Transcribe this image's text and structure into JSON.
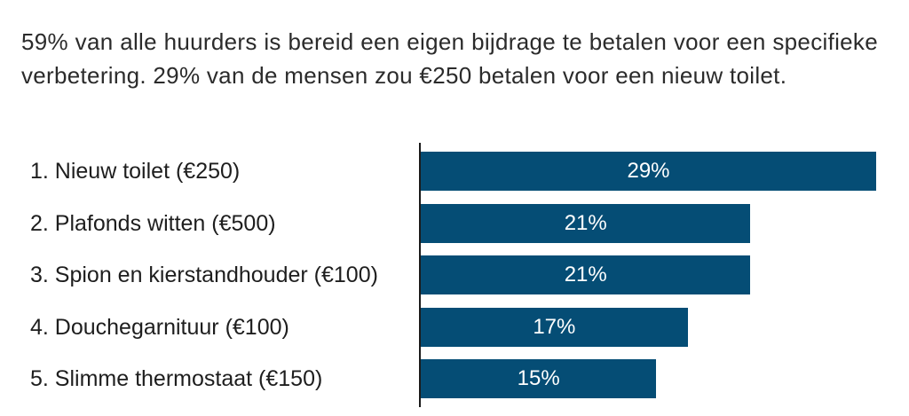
{
  "intro": {
    "text": "59% van alle huurders is bereid een eigen bijdrage te betalen voor een specifieke verbetering. 29% van de mensen zou €250 betalen voor een nieuw toilet."
  },
  "colors": {
    "bar": "#054D75",
    "text": "#2b2b2b"
  },
  "chart_data": {
    "type": "bar",
    "orientation": "horizontal",
    "categories": [
      "1. Nieuw toilet (€250)",
      "2. Plafonds witten (€500)",
      "3. Spion en kierstandhouder (€100)",
      "4. Douchegarnituur (€100)",
      "5. Slimme thermostaat (€150)"
    ],
    "values": [
      29,
      21,
      21,
      17,
      15
    ],
    "value_labels": [
      "29%",
      "21%",
      "21%",
      "17%",
      "15%"
    ],
    "unit": "%",
    "title": "",
    "xlabel": "",
    "ylabel": "",
    "xlim": [
      0,
      29
    ],
    "grid": false
  }
}
